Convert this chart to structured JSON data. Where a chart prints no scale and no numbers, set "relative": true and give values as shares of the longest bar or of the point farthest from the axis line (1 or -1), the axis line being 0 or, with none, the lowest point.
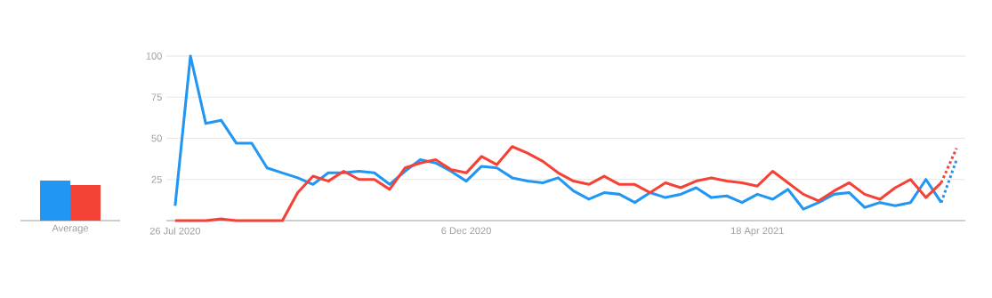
{
  "chart_data": [
    {
      "type": "bar",
      "relative": true,
      "categories": [
        "Average"
      ],
      "series": [
        {
          "color": "#2196f3",
          "values": [
            1
          ]
        },
        {
          "color": "#f44336",
          "values": [
            0.89
          ]
        }
      ]
    },
    {
      "type": "line",
      "grid": "y",
      "xlim": [
        "2020-07-22",
        "2021-07-22"
      ],
      "ylim": [
        0,
        100
      ],
      "yticks": [
        25,
        50,
        75,
        100
      ],
      "xticks": [
        {
          "value": "2020-07-26",
          "label": "26 Jul 2020"
        },
        {
          "value": "2020-12-06",
          "label": "6 Dec 2020"
        },
        {
          "value": "2021-04-18",
          "label": "18 Apr 2021"
        }
      ],
      "x": [
        "2020-07-26",
        "2020-08-02",
        "2020-08-09",
        "2020-08-16",
        "2020-08-23",
        "2020-08-30",
        "2020-09-06",
        "2020-09-13",
        "2020-09-20",
        "2020-09-27",
        "2020-10-04",
        "2020-10-11",
        "2020-10-18",
        "2020-10-25",
        "2020-11-01",
        "2020-11-08",
        "2020-11-15",
        "2020-11-22",
        "2020-11-29",
        "2020-12-06",
        "2020-12-13",
        "2020-12-20",
        "2020-12-27",
        "2021-01-03",
        "2021-01-10",
        "2021-01-17",
        "2021-01-24",
        "2021-01-31",
        "2021-02-07",
        "2021-02-14",
        "2021-02-21",
        "2021-02-28",
        "2021-03-07",
        "2021-03-14",
        "2021-03-21",
        "2021-03-28",
        "2021-04-04",
        "2021-04-11",
        "2021-04-18",
        "2021-04-25",
        "2021-05-02",
        "2021-05-09",
        "2021-05-16",
        "2021-05-23",
        "2021-05-30",
        "2021-06-06",
        "2021-06-13",
        "2021-06-20",
        "2021-06-27",
        "2021-07-04",
        "2021-07-11"
      ],
      "series": [
        {
          "color": "#2196f3",
          "line_style": "solid",
          "values": [
            9,
            100,
            59,
            61,
            47,
            47,
            32,
            29,
            26,
            22,
            29,
            29,
            30,
            29,
            22,
            30,
            37,
            35,
            30,
            24,
            33,
            32,
            26,
            24,
            23,
            26,
            18,
            13,
            17,
            16,
            11,
            17,
            14,
            16,
            20,
            14,
            15,
            11,
            16,
            13,
            19,
            7,
            11,
            16,
            17,
            8,
            11,
            9,
            11,
            25,
            11
          ]
        },
        {
          "color": "#f44336",
          "line_style": "solid",
          "values": [
            0,
            0,
            0,
            1,
            0,
            0,
            0,
            0,
            17,
            27,
            24,
            30,
            25,
            25,
            19,
            32,
            35,
            37,
            31,
            29,
            39,
            34,
            45,
            41,
            36,
            29,
            24,
            22,
            27,
            22,
            22,
            17,
            23,
            20,
            24,
            26,
            24,
            23,
            21,
            30,
            23,
            16,
            12,
            18,
            23,
            16,
            13,
            20,
            25,
            14,
            23
          ]
        },
        {
          "color": "#2196f3",
          "line_style": "dotted",
          "x": [
            "2021-07-11",
            "2021-07-18"
          ],
          "values": [
            11,
            37
          ]
        },
        {
          "color": "#f44336",
          "line_style": "dotted",
          "x": [
            "2021-07-11",
            "2021-07-18"
          ],
          "values": [
            23,
            44
          ]
        }
      ]
    }
  ]
}
